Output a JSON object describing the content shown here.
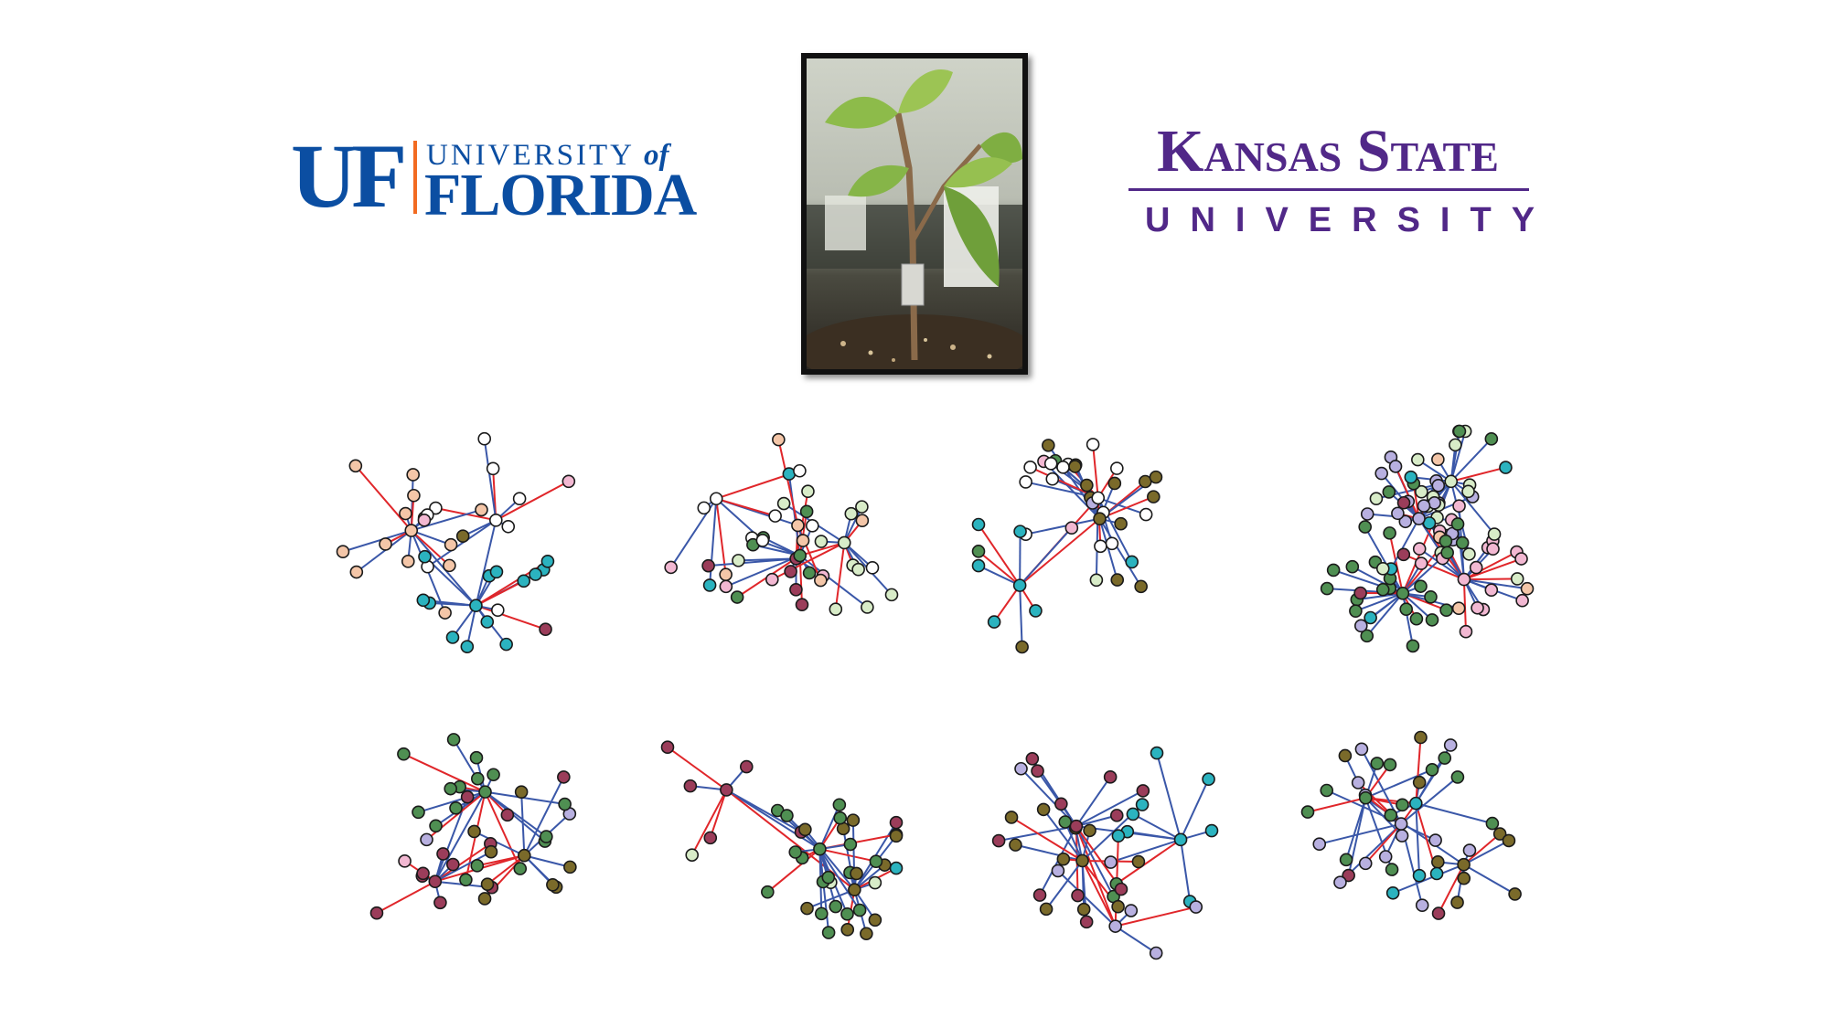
{
  "logos": {
    "uf": {
      "mark": "UF",
      "line1_main": "UNIVERSITY",
      "line1_of": "of",
      "line2": "FLORIDA"
    },
    "ksu": {
      "title": "Kansas State",
      "subtitle": "UNIVERSITY"
    }
  },
  "photo": {
    "subject": "tomato-seedling"
  },
  "colors": {
    "node_outline": "#1a1a1a",
    "edge_blue": "#3a57a8",
    "edge_red": "#e0262a",
    "node_palette": [
      "#ffffff",
      "#2bb3bf",
      "#f4c6a8",
      "#7a6a2a",
      "#9b3d5a",
      "#4f8f52",
      "#b8b0e0",
      "#d8ecc8",
      "#f2b8d2"
    ]
  }
}
